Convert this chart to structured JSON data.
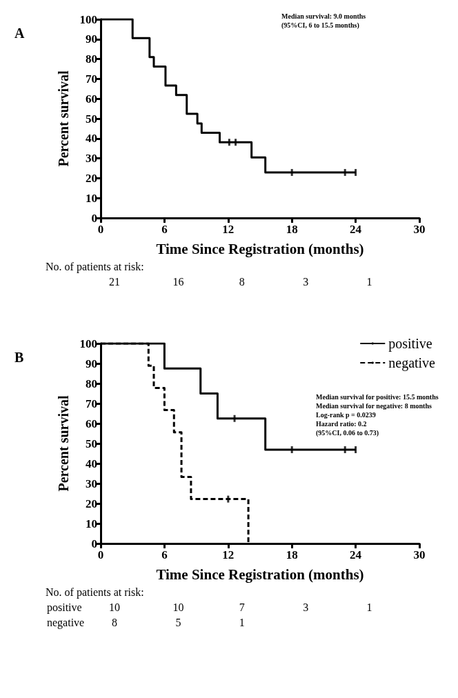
{
  "chart_data": [
    {
      "type": "step",
      "title": "A",
      "xlabel": "Time Since Registration (months)",
      "ylabel": "Percent survival",
      "series": [
        {
          "color": "#000000",
          "x": [
            0,
            3,
            4.6,
            5,
            6.1,
            7.1,
            8.1,
            9.1,
            9.5,
            11.2,
            14.2,
            15.5,
            24
          ],
          "values": [
            100,
            90.5,
            81,
            76.2,
            66.7,
            61.9,
            52.4,
            47.6,
            42.9,
            38.1,
            30.5,
            22.9,
            22.9
          ]
        },
        {
          "type": "scatter",
          "color": "#000000",
          "x": [
            12.1,
            12.7,
            18,
            23,
            24
          ],
          "values": [
            38.1,
            38.1,
            22.9,
            22.9,
            22.9
          ]
        }
      ],
      "xlim": [
        0,
        30
      ],
      "xticks": [
        0,
        6,
        12,
        18,
        24,
        30
      ],
      "ylim": [
        0,
        100
      ],
      "yticks": [
        0,
        10,
        20,
        30,
        40,
        50,
        60,
        70,
        80,
        90,
        100
      ],
      "grid": false,
      "legend": false,
      "annotations": [
        "Median survival: 9.0 months",
        "(95%CI, 6 to 15.5 months)",
        "No. of patients at risk:",
        "21 16 8 3 1"
      ]
    },
    {
      "type": "step",
      "title": "B",
      "xlabel": "Time Since Registration (months)",
      "ylabel": "Percent survival",
      "series": [
        {
          "name": "positive",
          "color": "#000000",
          "line_style": "solid",
          "x": [
            0,
            6,
            9.4,
            11,
            15.5,
            24
          ],
          "values": [
            100,
            87.5,
            75,
            62.5,
            46.9,
            46.9
          ]
        },
        {
          "name": "negative",
          "color": "#000000",
          "line_style": "dashed",
          "x": [
            0,
            4.5,
            5,
            6,
            6.9,
            7.6,
            8.5,
            13.9
          ],
          "values": [
            100,
            88.9,
            77.8,
            66.7,
            55.6,
            33.3,
            22.2,
            0
          ]
        },
        {
          "type": "scatter",
          "color": "#000000",
          "x": [
            12.6,
            18,
            23,
            24,
            12
          ],
          "values": [
            62.5,
            46.9,
            46.9,
            46.9,
            22.2
          ]
        }
      ],
      "xlim": [
        0,
        30
      ],
      "xticks": [
        0,
        6,
        12,
        18,
        24,
        30
      ],
      "ylim": [
        0,
        100
      ],
      "yticks": [
        0,
        10,
        20,
        30,
        40,
        50,
        60,
        70,
        80,
        90,
        100
      ],
      "grid": false,
      "legend": "top right",
      "annotations": [
        "Median survival for positive: 15.5 months",
        "Median survival for negative: 8 months",
        "Log-rank p = 0.0239",
        "Hazard ratio: 0.2",
        "(95%CI, 0.06 to 0.73)",
        "No. of patients at risk:",
        "positive 10 10 7 3 1",
        "negative 8 5 1"
      ]
    }
  ]
}
